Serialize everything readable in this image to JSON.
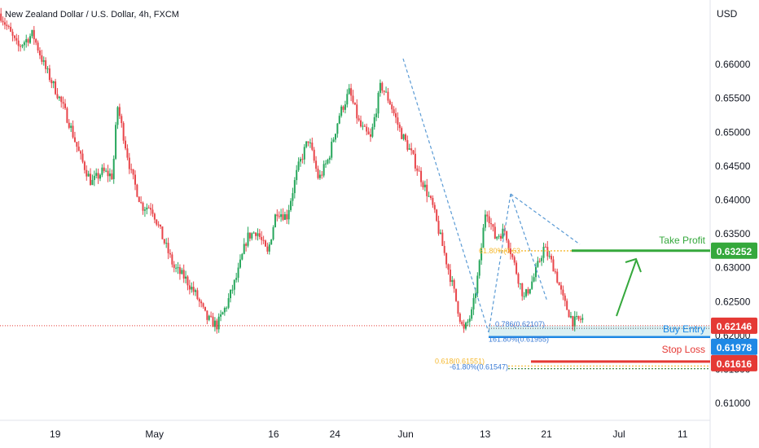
{
  "header": {
    "symbol_title": "New Zealand Dollar / U.S. Dollar, 4h, FXCM",
    "currency": "USD"
  },
  "colors": {
    "up": "#26a65b",
    "down": "#e8454a",
    "take_profit": "#35a83c",
    "stop_loss": "#e53935",
    "buy_entry": "#1e88e5",
    "fib_gold": "#f5b82e",
    "fib_blue": "#3a7bd5",
    "price_line": "#e53935",
    "entry_zone": "#d7eef2"
  },
  "chart_data": {
    "type": "candlestick",
    "timeframe": "4h",
    "ylim": [
      0.6075,
      0.6695
    ],
    "y_ticks": [
      "0.66000",
      "0.65500",
      "0.65000",
      "0.64500",
      "0.64000",
      "0.63500",
      "0.63000",
      "0.62500",
      "0.62000",
      "0.61500",
      "0.61000"
    ],
    "x_ticks": [
      {
        "label": "19",
        "t": 0.08
      },
      {
        "label": "May",
        "t": 0.22
      },
      {
        "label": "16",
        "t": 0.4
      },
      {
        "label": "24",
        "t": 0.49
      },
      {
        "label": "Jun",
        "t": 0.59
      },
      {
        "label": "13",
        "t": 0.71
      },
      {
        "label": "21",
        "t": 0.8
      },
      {
        "label": "Jul",
        "t": 0.905
      },
      {
        "label": "11",
        "t": 1.0
      }
    ],
    "price_path": [
      {
        "t": 0.0,
        "p": 0.6675
      },
      {
        "t": 0.026,
        "p": 0.6625
      },
      {
        "t": 0.048,
        "p": 0.6645
      },
      {
        "t": 0.066,
        "p": 0.6595
      },
      {
        "t": 0.085,
        "p": 0.6555
      },
      {
        "t": 0.101,
        "p": 0.6515
      },
      {
        "t": 0.117,
        "p": 0.6465
      },
      {
        "t": 0.134,
        "p": 0.6425
      },
      {
        "t": 0.15,
        "p": 0.6442
      },
      {
        "t": 0.165,
        "p": 0.6435
      },
      {
        "t": 0.172,
        "p": 0.654
      },
      {
        "t": 0.18,
        "p": 0.65
      },
      {
        "t": 0.192,
        "p": 0.644
      },
      {
        "t": 0.208,
        "p": 0.639
      },
      {
        "t": 0.222,
        "p": 0.639
      },
      {
        "t": 0.238,
        "p": 0.6345
      },
      {
        "t": 0.255,
        "p": 0.63
      },
      {
        "t": 0.271,
        "p": 0.6285
      },
      {
        "t": 0.287,
        "p": 0.626
      },
      {
        "t": 0.303,
        "p": 0.6225
      },
      {
        "t": 0.318,
        "p": 0.6215
      },
      {
        "t": 0.332,
        "p": 0.6245
      },
      {
        "t": 0.348,
        "p": 0.629
      },
      {
        "t": 0.362,
        "p": 0.6345
      },
      {
        "t": 0.376,
        "p": 0.6355
      },
      {
        "t": 0.392,
        "p": 0.632
      },
      {
        "t": 0.405,
        "p": 0.6385
      },
      {
        "t": 0.42,
        "p": 0.6375
      },
      {
        "t": 0.436,
        "p": 0.6445
      },
      {
        "t": 0.452,
        "p": 0.649
      },
      {
        "t": 0.467,
        "p": 0.643
      },
      {
        "t": 0.481,
        "p": 0.646
      },
      {
        "t": 0.497,
        "p": 0.6525
      },
      {
        "t": 0.512,
        "p": 0.656
      },
      {
        "t": 0.527,
        "p": 0.651
      },
      {
        "t": 0.543,
        "p": 0.649
      },
      {
        "t": 0.558,
        "p": 0.657
      },
      {
        "t": 0.571,
        "p": 0.6545
      },
      {
        "t": 0.587,
        "p": 0.65
      },
      {
        "t": 0.602,
        "p": 0.647
      },
      {
        "t": 0.618,
        "p": 0.643
      },
      {
        "t": 0.634,
        "p": 0.639
      },
      {
        "t": 0.649,
        "p": 0.633
      },
      {
        "t": 0.664,
        "p": 0.627
      },
      {
        "t": 0.679,
        "p": 0.6205
      },
      {
        "t": 0.692,
        "p": 0.6235
      },
      {
        "t": 0.702,
        "p": 0.63
      },
      {
        "t": 0.712,
        "p": 0.639
      },
      {
        "t": 0.725,
        "p": 0.6345
      },
      {
        "t": 0.74,
        "p": 0.6355
      },
      {
        "t": 0.755,
        "p": 0.63
      },
      {
        "t": 0.768,
        "p": 0.6255
      },
      {
        "t": 0.782,
        "p": 0.6285
      },
      {
        "t": 0.797,
        "p": 0.633
      },
      {
        "t": 0.812,
        "p": 0.63
      },
      {
        "t": 0.826,
        "p": 0.625
      },
      {
        "t": 0.84,
        "p": 0.622
      },
      {
        "t": 0.855,
        "p": 0.6225
      }
    ],
    "annotations": {
      "take_profit": {
        "label": "Take Profit",
        "value": "0.63252",
        "price": 0.63252
      },
      "buy_entry": {
        "label": "Buy Entry",
        "value": "0.61978",
        "price": 0.61978
      },
      "stop_loss": {
        "label": "Stop Loss",
        "value": "0.61616",
        "price": 0.61616
      },
      "current_price": {
        "value": "0.62146",
        "price": 0.62146
      },
      "fib_levels": [
        {
          "label": "61.80%(0.63",
          "price": 0.6325
        },
        {
          "label": "0.786(0.62107)",
          "price": 0.62107
        },
        {
          "label": "161.80%(0.61955)",
          "price": 0.61955
        },
        {
          "label": "0.618(0.61551)",
          "price": 0.61551
        },
        {
          "label": "-61.80%(0.61547)",
          "price": 0.61547
        }
      ]
    }
  }
}
